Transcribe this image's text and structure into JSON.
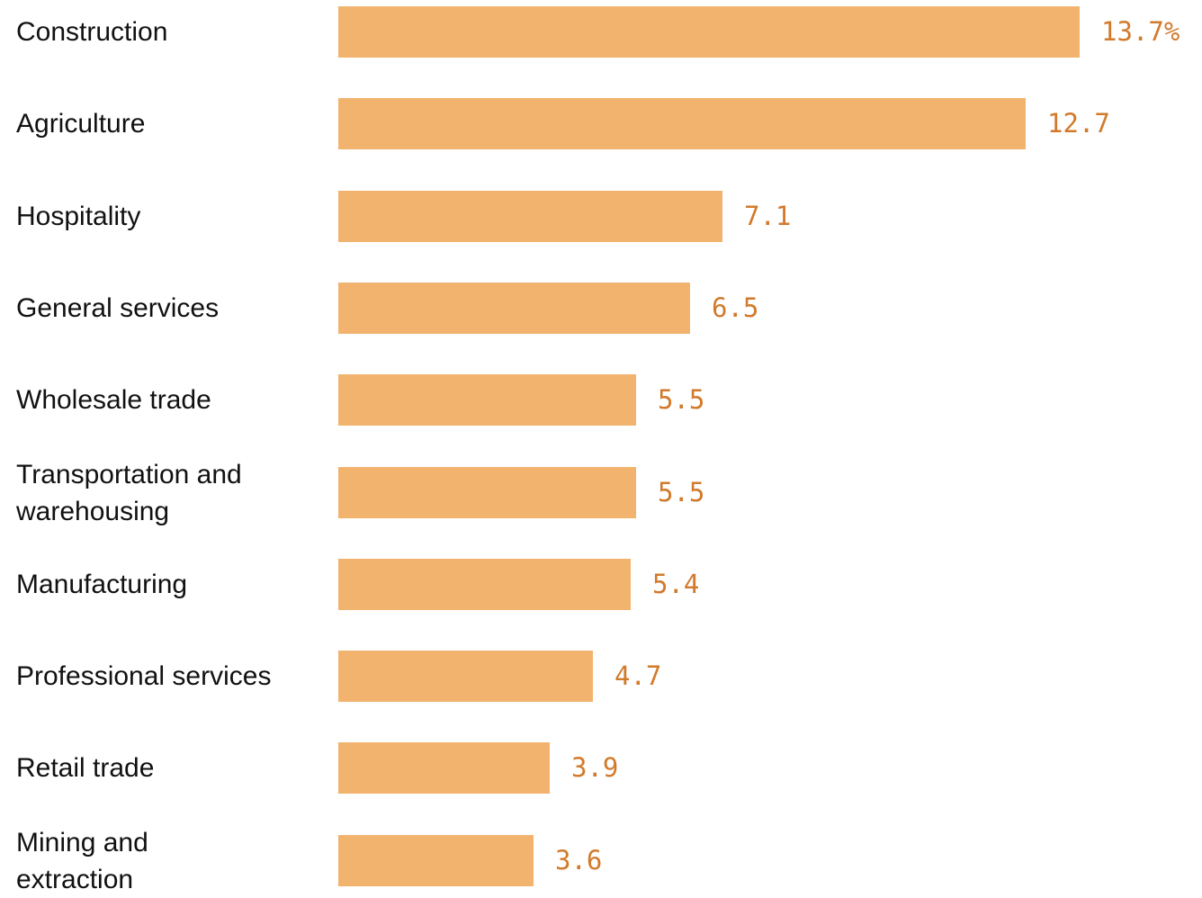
{
  "chart_data": {
    "type": "bar",
    "orientation": "horizontal",
    "categories": [
      "Construction",
      "Agriculture",
      "Hospitality",
      "General services",
      "Wholesale trade",
      "Transportation and\nwarehousing",
      "Manufacturing",
      "Professional services",
      "Retail trade",
      "Mining and\nextraction"
    ],
    "values": [
      13.7,
      12.7,
      7.1,
      6.5,
      5.5,
      5.5,
      5.4,
      4.7,
      3.9,
      3.6
    ],
    "value_labels": [
      "13.7%",
      "12.7",
      "7.1",
      "6.5",
      "5.5",
      "5.5",
      "5.4",
      "4.7",
      "3.9",
      "3.6"
    ],
    "xlim": [
      0,
      13.7
    ],
    "grid": false,
    "legend": "none",
    "bar_color": "#f2b36f",
    "label_color": "#d27a2c"
  }
}
